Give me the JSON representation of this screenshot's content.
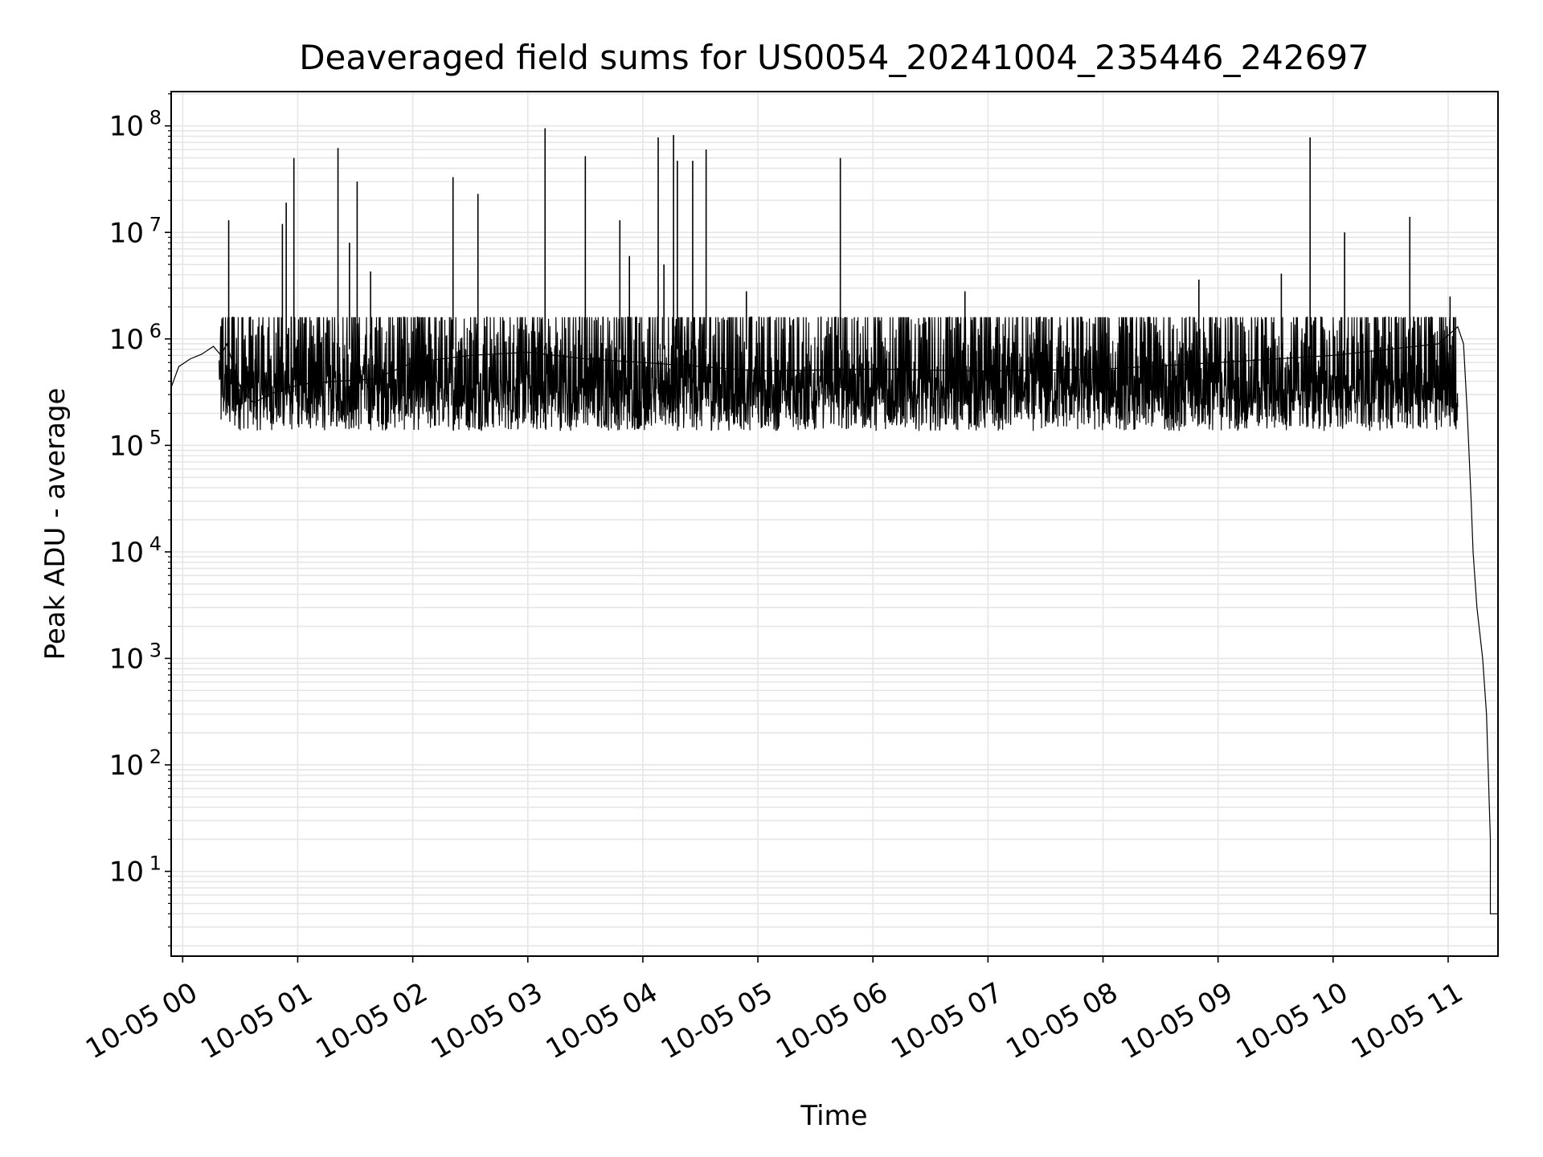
{
  "chart_data": {
    "type": "line",
    "title": "Deaveraged field sums for US0054_20241004_235446_242697",
    "xlabel": "Time",
    "ylabel": "Peak ADU - average",
    "yscale": "log",
    "ylim": [
      1.6,
      210000000.0
    ],
    "xlim": [
      "2024-10-04 23:54",
      "2024-10-05 11:26"
    ],
    "grid": true,
    "x_ticks": [
      "10-05 00",
      "10-05 01",
      "10-05 02",
      "10-05 03",
      "10-05 04",
      "10-05 05",
      "10-05 06",
      "10-05 07",
      "10-05 08",
      "10-05 09",
      "10-05 10",
      "10-05 11"
    ],
    "y_ticks": [
      {
        "value": 10,
        "base": "10",
        "exp": "1"
      },
      {
        "value": 100,
        "base": "10",
        "exp": "2"
      },
      {
        "value": 1000,
        "base": "10",
        "exp": "3"
      },
      {
        "value": 10000,
        "base": "10",
        "exp": "4"
      },
      {
        "value": 100000,
        "base": "10",
        "exp": "5"
      },
      {
        "value": 1000000,
        "base": "10",
        "exp": "6"
      },
      {
        "value": 10000000,
        "base": "10",
        "exp": "7"
      },
      {
        "value": 100000000,
        "base": "10",
        "exp": "8"
      }
    ],
    "series": [
      {
        "color": "#000000",
        "noise_band": {
          "low": 120000.0,
          "high": 1600000.0,
          "x_range": [
            "2024-10-05 00:19",
            "2024-10-05 11:05"
          ]
        },
        "points": [
          {
            "x": "2024-10-04 23:54",
            "y": 350000
          },
          {
            "x": "2024-10-04 23:58",
            "y": 550000
          },
          {
            "x": "2024-10-05 00:04",
            "y": 650000
          },
          {
            "x": "2024-10-05 00:10",
            "y": 720000
          },
          {
            "x": "2024-10-05 00:16",
            "y": 850000
          },
          {
            "x": "2024-10-05 00:20",
            "y": 700000
          },
          {
            "x": "2024-10-05 00:23",
            "y": 900000
          },
          {
            "x": "2024-10-05 00:30",
            "y": 350000
          },
          {
            "x": "2024-10-05 00:37",
            "y": 250000
          },
          {
            "x": "2024-10-05 00:45",
            "y": 300000
          },
          {
            "x": "2024-10-05 00:55",
            "y": 350000
          },
          {
            "x": "2024-10-05 01:05",
            "y": 380000
          },
          {
            "x": "2024-10-05 01:20",
            "y": 400000
          },
          {
            "x": "2024-10-05 01:40",
            "y": 420000
          },
          {
            "x": "2024-10-05 02:00",
            "y": 600000
          },
          {
            "x": "2024-10-05 02:30",
            "y": 700000
          },
          {
            "x": "2024-10-05 03:00",
            "y": 750000
          },
          {
            "x": "2024-10-05 03:30",
            "y": 650000
          },
          {
            "x": "2024-10-05 04:00",
            "y": 600000
          },
          {
            "x": "2024-10-05 04:30",
            "y": 550000
          },
          {
            "x": "2024-10-05 05:00",
            "y": 500000
          },
          {
            "x": "2024-10-05 06:00",
            "y": 520000
          },
          {
            "x": "2024-10-05 07:00",
            "y": 500000
          },
          {
            "x": "2024-10-05 08:00",
            "y": 520000
          },
          {
            "x": "2024-10-05 09:00",
            "y": 600000
          },
          {
            "x": "2024-10-05 10:00",
            "y": 700000
          },
          {
            "x": "2024-10-05 10:55",
            "y": 900000
          },
          {
            "x": "2024-10-05 11:05",
            "y": 1300000
          },
          {
            "x": "2024-10-05 11:08",
            "y": 900000
          },
          {
            "x": "2024-10-05 11:10",
            "y": 200000
          },
          {
            "x": "2024-10-05 11:12",
            "y": 30000
          },
          {
            "x": "2024-10-05 11:13",
            "y": 10000
          },
          {
            "x": "2024-10-05 11:15",
            "y": 3000
          },
          {
            "x": "2024-10-05 11:18",
            "y": 1000
          },
          {
            "x": "2024-10-05 11:20",
            "y": 300
          },
          {
            "x": "2024-10-05 11:22",
            "y": 20
          },
          {
            "x": "2024-10-05 11:22",
            "y": 4
          },
          {
            "x": "2024-10-05 11:26",
            "y": 4
          }
        ],
        "spikes": [
          {
            "x": "2024-10-05 00:24",
            "y": 13000000
          },
          {
            "x": "2024-10-05 00:52",
            "y": 12000000
          },
          {
            "x": "2024-10-05 00:54",
            "y": 19000000
          },
          {
            "x": "2024-10-05 00:58",
            "y": 50000000
          },
          {
            "x": "2024-10-05 01:21",
            "y": 62000000
          },
          {
            "x": "2024-10-05 01:27",
            "y": 8000000
          },
          {
            "x": "2024-10-05 01:31",
            "y": 30000000
          },
          {
            "x": "2024-10-05 01:38",
            "y": 4300000
          },
          {
            "x": "2024-10-05 02:21",
            "y": 33000000
          },
          {
            "x": "2024-10-05 02:34",
            "y": 23000000
          },
          {
            "x": "2024-10-05 03:09",
            "y": 95000000
          },
          {
            "x": "2024-10-05 03:30",
            "y": 52000000
          },
          {
            "x": "2024-10-05 03:48",
            "y": 13000000
          },
          {
            "x": "2024-10-05 03:53",
            "y": 6000000
          },
          {
            "x": "2024-10-05 04:08",
            "y": 78000000
          },
          {
            "x": "2024-10-05 04:11",
            "y": 5000000
          },
          {
            "x": "2024-10-05 04:16",
            "y": 82000000
          },
          {
            "x": "2024-10-05 04:18",
            "y": 47000000
          },
          {
            "x": "2024-10-05 04:26",
            "y": 47000000
          },
          {
            "x": "2024-10-05 04:33",
            "y": 60000000
          },
          {
            "x": "2024-10-05 04:54",
            "y": 2800000
          },
          {
            "x": "2024-10-05 05:43",
            "y": 50000000
          },
          {
            "x": "2024-10-05 06:48",
            "y": 2800000
          },
          {
            "x": "2024-10-05 08:50",
            "y": 3600000
          },
          {
            "x": "2024-10-05 09:33",
            "y": 4100000
          },
          {
            "x": "2024-10-05 09:48",
            "y": 78000000
          },
          {
            "x": "2024-10-05 10:06",
            "y": 10000000
          },
          {
            "x": "2024-10-05 10:40",
            "y": 14000000
          },
          {
            "x": "2024-10-05 11:01",
            "y": 2500000
          }
        ]
      }
    ]
  }
}
